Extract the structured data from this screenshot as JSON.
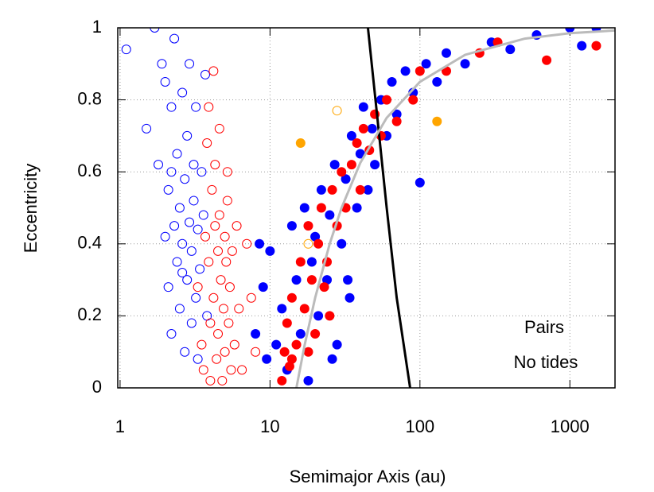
{
  "chart_data": {
    "type": "scatter",
    "xlabel": "Semimajor Axis (au)",
    "ylabel": "Eccentricity",
    "annotations": [
      "Pairs",
      "No tides"
    ],
    "xscale": "log",
    "xlim": [
      0.965,
      2000
    ],
    "ylim": [
      0,
      1
    ],
    "xticks": [
      1,
      10,
      100,
      1000
    ],
    "yticks": [
      0,
      0.2,
      0.4,
      0.6,
      0.8,
      1
    ],
    "grid": true,
    "series": [
      {
        "color": "#0000ff",
        "marker": "open",
        "x": [
          1.1,
          1.5,
          1.7,
          1.8,
          1.9,
          2.0,
          2.1,
          2.1,
          2.2,
          2.2,
          2.3,
          2.3,
          2.4,
          2.4,
          2.5,
          2.5,
          2.6,
          2.6,
          2.7,
          2.7,
          2.8,
          2.8,
          2.9,
          2.9,
          3.0,
          3.0,
          3.1,
          3.1,
          3.2,
          3.2,
          3.3,
          3.3,
          3.4,
          3.5,
          3.6,
          3.7,
          3.8,
          2.0,
          2.2,
          2.6
        ],
        "values": [
          0.94,
          0.72,
          1.0,
          0.62,
          0.9,
          0.85,
          0.28,
          0.55,
          0.78,
          0.15,
          0.45,
          0.97,
          0.35,
          0.65,
          0.22,
          0.5,
          0.82,
          0.4,
          0.1,
          0.58,
          0.3,
          0.7,
          0.46,
          0.9,
          0.18,
          0.38,
          0.62,
          0.52,
          0.25,
          0.78,
          0.44,
          0.08,
          0.33,
          0.6,
          0.48,
          0.87,
          0.2,
          0.42,
          0.6,
          0.32
        ]
      },
      {
        "color": "#ff0000",
        "marker": "open",
        "x": [
          3.3,
          3.5,
          3.6,
          3.7,
          3.8,
          3.9,
          4.0,
          4.0,
          4.1,
          4.2,
          4.2,
          4.3,
          4.4,
          4.5,
          4.5,
          4.6,
          4.7,
          4.8,
          4.9,
          5.0,
          5.0,
          5.1,
          5.2,
          5.3,
          5.4,
          5.5,
          5.6,
          5.8,
          6.0,
          6.2,
          6.5,
          7.0,
          7.5,
          8.0,
          4.6,
          5.2,
          3.9,
          4.3
        ],
        "values": [
          0.28,
          0.12,
          0.05,
          0.42,
          0.68,
          0.35,
          0.02,
          0.18,
          0.55,
          0.88,
          0.25,
          0.62,
          0.08,
          0.38,
          0.15,
          0.48,
          0.3,
          0.02,
          0.22,
          0.42,
          0.1,
          0.35,
          0.52,
          0.18,
          0.28,
          0.05,
          0.38,
          0.12,
          0.45,
          0.22,
          0.05,
          0.4,
          0.25,
          0.1,
          0.72,
          0.6,
          0.78,
          0.45
        ]
      },
      {
        "color": "#0000ff",
        "marker": "filled",
        "x": [
          8,
          8.5,
          9,
          9.5,
          10,
          11,
          12,
          13,
          14,
          15,
          16,
          17,
          18,
          19,
          20,
          21,
          22,
          24,
          25,
          27,
          28,
          30,
          32,
          34,
          35,
          38,
          40,
          42,
          45,
          48,
          50,
          55,
          60,
          65,
          70,
          80,
          90,
          100,
          110,
          130,
          150,
          200,
          300,
          400,
          600,
          1000,
          1200,
          1500,
          26,
          33
        ],
        "values": [
          0.15,
          0.4,
          0.28,
          0.08,
          0.38,
          0.12,
          0.22,
          0.05,
          0.45,
          0.3,
          0.15,
          0.5,
          0.02,
          0.35,
          0.42,
          0.2,
          0.55,
          0.3,
          0.48,
          0.62,
          0.12,
          0.4,
          0.58,
          0.25,
          0.7,
          0.5,
          0.65,
          0.78,
          0.55,
          0.72,
          0.62,
          0.8,
          0.7,
          0.85,
          0.76,
          0.88,
          0.82,
          0.57,
          0.9,
          0.85,
          0.93,
          0.9,
          0.96,
          0.94,
          0.98,
          1.0,
          0.95,
          1.0,
          0.08,
          0.3
        ]
      },
      {
        "color": "#ff0000",
        "marker": "filled",
        "x": [
          12,
          12.5,
          13,
          13.5,
          14,
          15,
          16,
          17,
          18,
          19,
          20,
          21,
          22,
          23,
          24,
          26,
          28,
          30,
          32,
          35,
          38,
          40,
          42,
          46,
          50,
          55,
          60,
          70,
          90,
          100,
          150,
          250,
          330,
          700,
          1500,
          18,
          25,
          14
        ],
        "values": [
          0.02,
          0.1,
          0.18,
          0.06,
          0.25,
          0.12,
          0.35,
          0.22,
          0.45,
          0.3,
          0.15,
          0.4,
          0.5,
          0.28,
          0.35,
          0.55,
          0.45,
          0.6,
          0.5,
          0.62,
          0.68,
          0.55,
          0.72,
          0.66,
          0.76,
          0.7,
          0.8,
          0.74,
          0.8,
          0.88,
          0.88,
          0.93,
          0.96,
          0.91,
          0.95,
          0.1,
          0.2,
          0.08
        ]
      },
      {
        "color": "#ffa500",
        "marker": "filled",
        "x": [
          16,
          130
        ],
        "values": [
          0.68,
          0.74
        ]
      },
      {
        "color": "#ffa500",
        "marker": "open",
        "x": [
          28,
          18
        ],
        "values": [
          0.77,
          0.4
        ]
      },
      {
        "color": "#000000",
        "marker": "line",
        "x": [
          45,
          52,
          60,
          70,
          86
        ],
        "values": [
          1,
          0.75,
          0.5,
          0.25,
          0
        ]
      },
      {
        "color": "#bbbbbb",
        "marker": "line",
        "x": [
          15,
          17,
          20,
          25,
          30,
          40,
          60,
          100,
          200,
          500,
          1000,
          2000
        ],
        "values": [
          0,
          0.118,
          0.25,
          0.4,
          0.5,
          0.625,
          0.75,
          0.85,
          0.925,
          0.97,
          0.985,
          0.9925
        ]
      }
    ]
  }
}
